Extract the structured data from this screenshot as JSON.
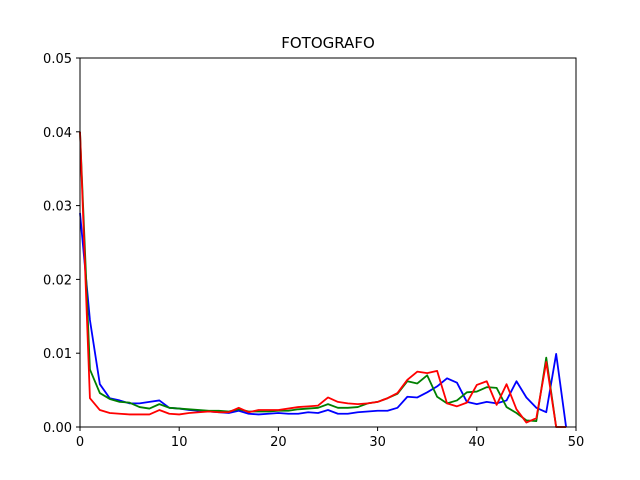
{
  "chart_data": {
    "type": "line",
    "title": "FOTOGRAFO",
    "xlabel": "",
    "ylabel": "",
    "xlim": [
      0,
      50
    ],
    "ylim": [
      0,
      0.05
    ],
    "xticks": [
      0,
      10,
      20,
      30,
      40,
      50
    ],
    "yticks": [
      0.0,
      0.01,
      0.02,
      0.03,
      0.04,
      0.05
    ],
    "xtick_labels": [
      "0",
      "10",
      "20",
      "30",
      "40",
      "50"
    ],
    "ytick_labels": [
      "0.00",
      "0.01",
      "0.02",
      "0.03",
      "0.04",
      "0.05"
    ],
    "grid": false,
    "legend": "none",
    "x": [
      0,
      1,
      2,
      3,
      4,
      5,
      6,
      7,
      8,
      9,
      10,
      11,
      12,
      13,
      14,
      15,
      16,
      17,
      18,
      19,
      20,
      21,
      22,
      23,
      24,
      25,
      26,
      27,
      28,
      29,
      30,
      31,
      32,
      33,
      34,
      35,
      36,
      37,
      38,
      39,
      40,
      41,
      42,
      43,
      44,
      45,
      46,
      47,
      48,
      49
    ],
    "series": [
      {
        "color": "#0000ff",
        "values": [
          0.029,
          0.0145,
          0.0058,
          0.0039,
          0.0036,
          0.0032,
          0.0032,
          0.0034,
          0.0036,
          0.0026,
          0.0025,
          0.0023,
          0.0022,
          0.0021,
          0.002,
          0.0019,
          0.0022,
          0.0018,
          0.0017,
          0.0018,
          0.0019,
          0.0018,
          0.0018,
          0.002,
          0.0019,
          0.0023,
          0.0018,
          0.0018,
          0.002,
          0.0021,
          0.0022,
          0.0022,
          0.0026,
          0.0041,
          0.004,
          0.0047,
          0.0055,
          0.0066,
          0.006,
          0.0034,
          0.0031,
          0.0034,
          0.0032,
          0.0036,
          0.0062,
          0.004,
          0.0026,
          0.002,
          0.0099,
          0.0
        ]
      },
      {
        "color": "#008000",
        "values": [
          0.04,
          0.0078,
          0.0046,
          0.0038,
          0.0034,
          0.0033,
          0.0027,
          0.0025,
          0.0031,
          0.0026,
          0.0025,
          0.0024,
          0.0023,
          0.0022,
          0.0022,
          0.0021,
          0.0024,
          0.0021,
          0.0021,
          0.0021,
          0.0022,
          0.0022,
          0.0024,
          0.0025,
          0.0026,
          0.0031,
          0.0026,
          0.0026,
          0.0027,
          0.0032,
          0.0034,
          0.0039,
          0.0045,
          0.0062,
          0.0059,
          0.007,
          0.0041,
          0.0032,
          0.0036,
          0.0047,
          0.0048,
          0.0054,
          0.0053,
          0.0027,
          0.0019,
          0.0009,
          0.0008,
          0.0094,
          0.0,
          0.0
        ]
      },
      {
        "color": "#ff0000",
        "values": [
          0.04,
          0.0039,
          0.0023,
          0.0019,
          0.0018,
          0.0017,
          0.0017,
          0.0017,
          0.0023,
          0.0018,
          0.0017,
          0.0019,
          0.002,
          0.0021,
          0.002,
          0.002,
          0.0026,
          0.002,
          0.0023,
          0.0023,
          0.0023,
          0.0025,
          0.0027,
          0.0028,
          0.0029,
          0.004,
          0.0034,
          0.0032,
          0.0031,
          0.0032,
          0.0034,
          0.0039,
          0.0046,
          0.0064,
          0.0075,
          0.0073,
          0.0076,
          0.0032,
          0.0028,
          0.0033,
          0.0057,
          0.0062,
          0.003,
          0.0058,
          0.0024,
          0.0006,
          0.0012,
          0.0088,
          0.0,
          0.0
        ]
      }
    ]
  }
}
